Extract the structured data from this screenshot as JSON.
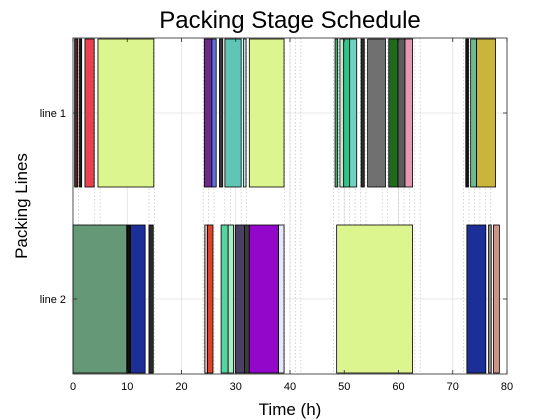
{
  "chart_data": {
    "type": "gantt",
    "title": "Packing Stage Schedule",
    "xlabel": "Time (h)",
    "ylabel": "Packing Lines",
    "xlim": [
      0,
      80
    ],
    "xticks": [
      0,
      10,
      20,
      30,
      40,
      50,
      60,
      70,
      80
    ],
    "lines": [
      "line 1",
      "line 2"
    ],
    "grid": true,
    "vertical_dotted_lines_at": [
      1,
      4,
      5,
      14,
      15,
      24,
      25,
      26,
      28,
      29,
      31,
      32,
      39,
      40,
      41,
      42,
      48,
      49,
      50,
      51,
      52,
      53,
      54,
      57,
      58,
      60,
      61,
      62,
      63,
      64,
      72,
      73,
      74,
      75,
      76,
      77
    ],
    "tasks": [
      {
        "line": "line 1",
        "start": 0.3,
        "end": 0.9,
        "color": "#5a1f1f"
      },
      {
        "line": "line 1",
        "start": 1.2,
        "end": 1.6,
        "color": "#1a1a1a"
      },
      {
        "line": "line 1",
        "start": 2.2,
        "end": 3.9,
        "color": "#e8424f"
      },
      {
        "line": "line 1",
        "start": 4.6,
        "end": 14.9,
        "color": "#dcf58e"
      },
      {
        "line": "line 1",
        "start": 24.2,
        "end": 25.6,
        "color": "#6a2a86"
      },
      {
        "line": "line 1",
        "start": 25.6,
        "end": 26.4,
        "color": "#5e6fe0"
      },
      {
        "line": "line 1",
        "start": 27.0,
        "end": 27.6,
        "color": "#3a3a3a"
      },
      {
        "line": "line 1",
        "start": 28.0,
        "end": 31.0,
        "color": "#5fc6b6"
      },
      {
        "line": "line 1",
        "start": 31.4,
        "end": 31.9,
        "color": "#b8e3e0"
      },
      {
        "line": "line 1",
        "start": 32.5,
        "end": 38.9,
        "color": "#dcf58e"
      },
      {
        "line": "line 1",
        "start": 48.3,
        "end": 48.8,
        "color": "#4fa373"
      },
      {
        "line": "line 1",
        "start": 49.2,
        "end": 49.9,
        "color": "#cfe8d2"
      },
      {
        "line": "line 1",
        "start": 49.9,
        "end": 51.0,
        "color": "#36c28e"
      },
      {
        "line": "line 1",
        "start": 51.0,
        "end": 52.3,
        "color": "#6fd2c0"
      },
      {
        "line": "line 1",
        "start": 53.1,
        "end": 53.7,
        "color": "#2c2c2c"
      },
      {
        "line": "line 1",
        "start": 54.3,
        "end": 57.6,
        "color": "#707070"
      },
      {
        "line": "line 1",
        "start": 58.2,
        "end": 59.9,
        "color": "#1e6b1e"
      },
      {
        "line": "line 1",
        "start": 59.9,
        "end": 61.2,
        "color": "#5c5c5c"
      },
      {
        "line": "line 1",
        "start": 61.2,
        "end": 62.6,
        "color": "#e698b3"
      },
      {
        "line": "line 1",
        "start": 72.4,
        "end": 72.9,
        "color": "#151515"
      },
      {
        "line": "line 1",
        "start": 73.3,
        "end": 74.4,
        "color": "#63bf8c"
      },
      {
        "line": "line 1",
        "start": 74.4,
        "end": 77.9,
        "color": "#c8b53a"
      },
      {
        "line": "line 2",
        "start": 0.0,
        "end": 9.9,
        "color": "#659877"
      },
      {
        "line": "line 2",
        "start": 10.0,
        "end": 10.5,
        "color": "#121212"
      },
      {
        "line": "line 2",
        "start": 10.6,
        "end": 13.3,
        "color": "#1c2e98"
      },
      {
        "line": "line 2",
        "start": 14.0,
        "end": 14.8,
        "color": "#2a2a2a"
      },
      {
        "line": "line 2",
        "start": 24.3,
        "end": 24.8,
        "color": "#d2c0c0"
      },
      {
        "line": "line 2",
        "start": 24.8,
        "end": 25.8,
        "color": "#d8452a"
      },
      {
        "line": "line 2",
        "start": 27.3,
        "end": 28.6,
        "color": "#57d2a3"
      },
      {
        "line": "line 2",
        "start": 28.6,
        "end": 29.6,
        "color": "#a9efc4"
      },
      {
        "line": "line 2",
        "start": 29.9,
        "end": 31.6,
        "color": "#4b3f63"
      },
      {
        "line": "line 2",
        "start": 31.6,
        "end": 32.5,
        "color": "#3c3c3c"
      },
      {
        "line": "line 2",
        "start": 32.5,
        "end": 37.9,
        "color": "#9207c9"
      },
      {
        "line": "line 2",
        "start": 37.9,
        "end": 38.9,
        "color": "#e6e6ff"
      },
      {
        "line": "line 2",
        "start": 48.6,
        "end": 62.6,
        "color": "#dcf58e"
      },
      {
        "line": "line 2",
        "start": 72.6,
        "end": 76.1,
        "color": "#1c2e98"
      },
      {
        "line": "line 2",
        "start": 76.6,
        "end": 77.1,
        "color": "#9a8a8a"
      },
      {
        "line": "line 2",
        "start": 77.5,
        "end": 78.6,
        "color": "#c8958a"
      }
    ]
  }
}
